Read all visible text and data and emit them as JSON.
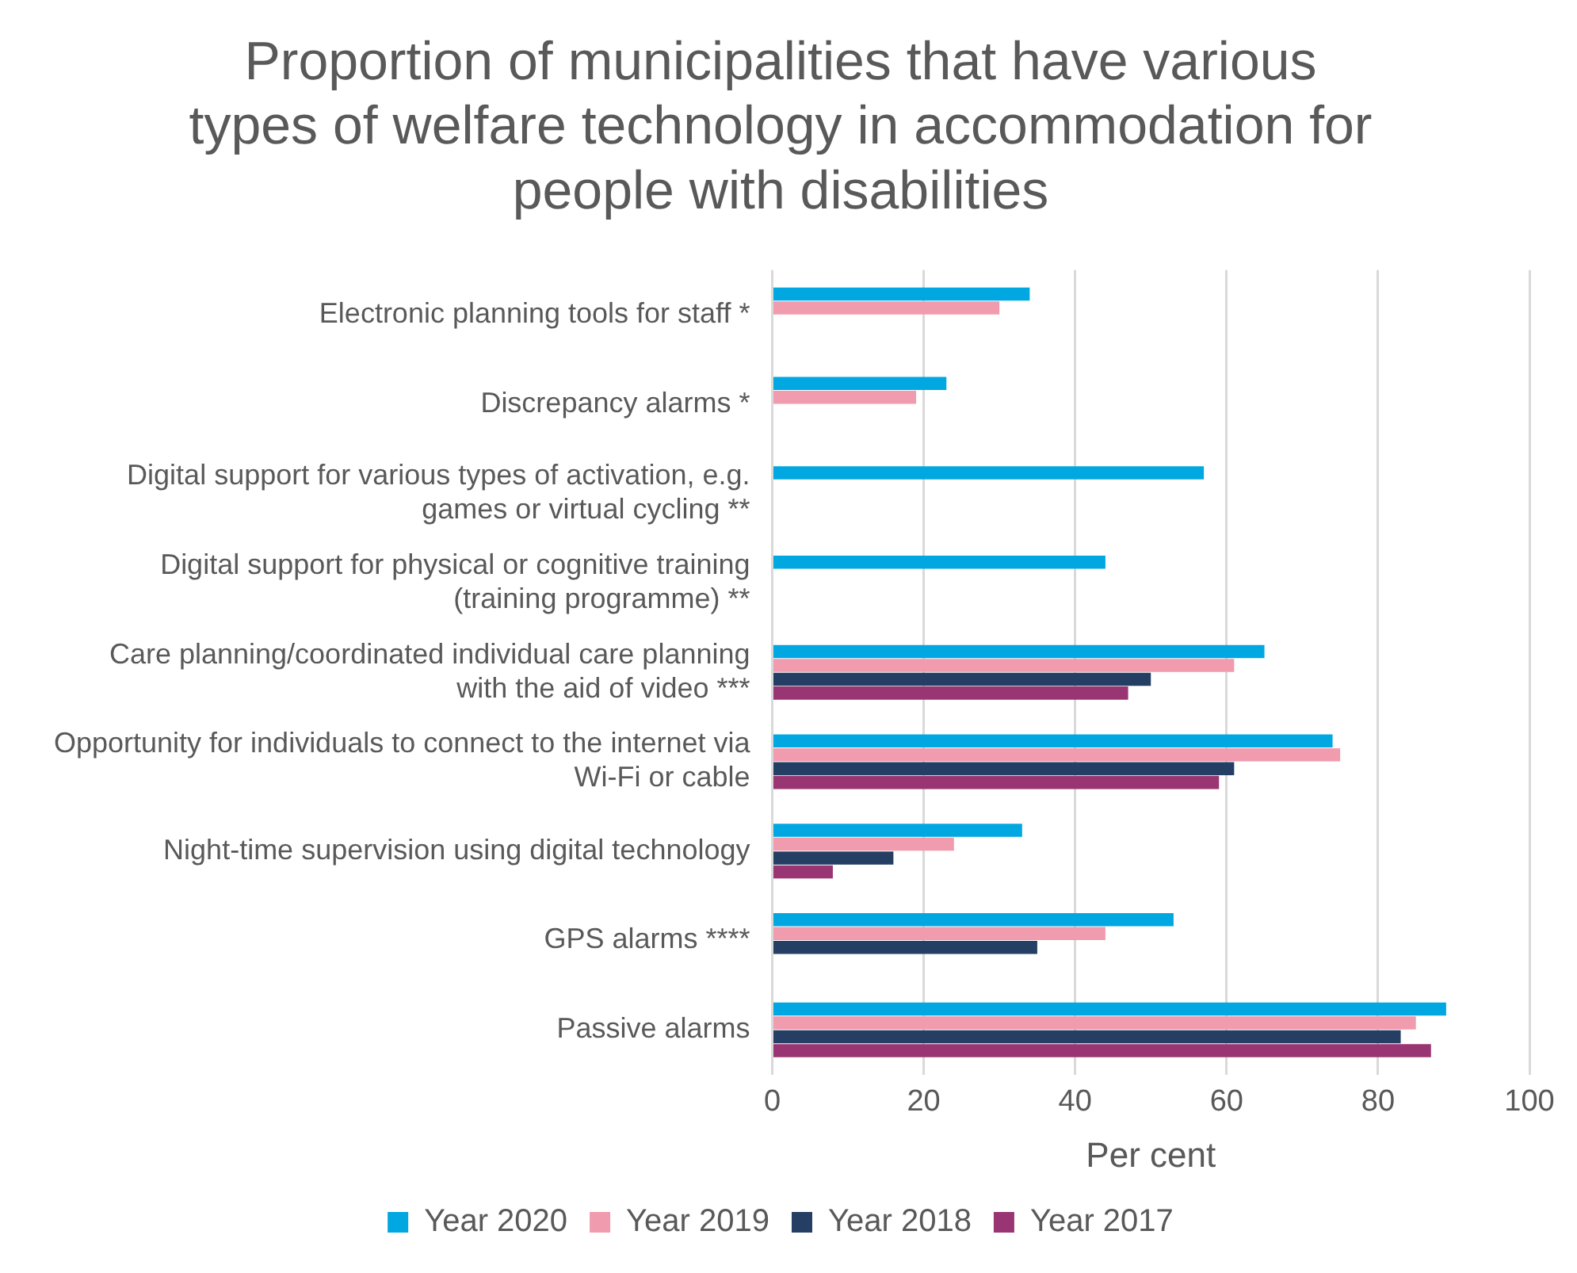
{
  "chart_data": {
    "type": "bar",
    "orientation": "horizontal",
    "title": "Proportion of municipalities that have various types of welfare technology in accommodation for people with disabilities",
    "xlabel": "Per cent",
    "categories": [
      "Electronic planning tools for staff *",
      "Discrepancy alarms *",
      "Digital support for various types of activation, e.g. games or virtual cycling **",
      "Digital support for physical or cognitive training (training programme) **",
      "Care planning/coordinated individual care planning with the aid of video ***",
      "Opportunity for individuals to connect to the internet via Wi-Fi or cable",
      "Night-time supervision using digital technology",
      "GPS alarms ****",
      "Passive alarms"
    ],
    "series": [
      {
        "name": "Year 2020",
        "color": "#00a7e1",
        "values": [
          34,
          23,
          57,
          44,
          65,
          74,
          33,
          53,
          89
        ]
      },
      {
        "name": "Year 2019",
        "color": "#f09bae",
        "values": [
          30,
          19,
          null,
          null,
          61,
          75,
          24,
          44,
          85
        ]
      },
      {
        "name": "Year 2018",
        "color": "#243f63",
        "values": [
          null,
          null,
          null,
          null,
          50,
          61,
          16,
          35,
          83
        ]
      },
      {
        "name": "Year 2017",
        "color": "#983572",
        "values": [
          null,
          null,
          null,
          null,
          47,
          59,
          8,
          null,
          87
        ]
      }
    ],
    "xlim": [
      0,
      100
    ],
    "xticks": [
      0,
      20,
      40,
      60,
      80,
      100
    ],
    "grid": "x",
    "legend": "bottom"
  }
}
